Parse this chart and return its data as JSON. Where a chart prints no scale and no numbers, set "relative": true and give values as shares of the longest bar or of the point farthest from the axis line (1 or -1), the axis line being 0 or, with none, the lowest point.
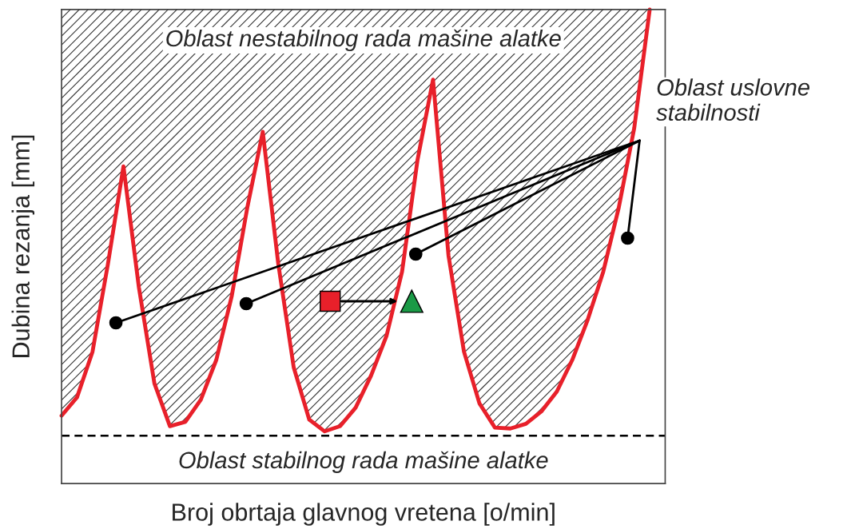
{
  "chart_data": {
    "type": "line",
    "relative": true,
    "xlabel": "Broj obrtaja glavnog vretena [o/min]",
    "ylabel": "Dubina rezanja [mm]",
    "categories": [
      null,
      null,
      null,
      null,
      null,
      null,
      null,
      null,
      null,
      null,
      null,
      null,
      null,
      null,
      null,
      null,
      null,
      null,
      null,
      null,
      null,
      null,
      null,
      null,
      null,
      null,
      null,
      null,
      null,
      null,
      null,
      null,
      null,
      null,
      null,
      null,
      null,
      null,
      null,
      null
    ],
    "series": [
      {
        "color": "#e8202a",
        "values": [
          0.143,
          0.182,
          0.278,
          0.464,
          0.669,
          0.413,
          0.211,
          0.121,
          0.13,
          0.177,
          0.261,
          0.396,
          0.582,
          0.742,
          0.464,
          0.245,
          0.135,
          0.11,
          0.121,
          0.16,
          0.228,
          0.312,
          0.447,
          0.683,
          0.852,
          0.481,
          0.278,
          0.169,
          0.118,
          0.116,
          0.126,
          0.152,
          0.194,
          0.261,
          0.346,
          0.447,
          0.582,
          0.75,
          1.0,
          null
        ],
        "lower": [
          0.143,
          0.182,
          0.278,
          0.464,
          0.669,
          0.413,
          0.211,
          0.121,
          0.13,
          0.177,
          0.261,
          0.396,
          0.582,
          0.742,
          0.464,
          0.245,
          0.135,
          0.11,
          0.121,
          0.16,
          0.228,
          0.312,
          0.447,
          0.683,
          0.852,
          0.481,
          0.278,
          0.169,
          0.118,
          0.116,
          0.126,
          0.152,
          0.194,
          0.261,
          0.346,
          0.447,
          0.582,
          0.75,
          1.0,
          null
        ],
        "upper": [
          1,
          1,
          1,
          1,
          1,
          1,
          1,
          1,
          1,
          1,
          1,
          1,
          1,
          1,
          1,
          1,
          1,
          1,
          1,
          1,
          1,
          1,
          1,
          1,
          1,
          1,
          1,
          1,
          1,
          1,
          1,
          1,
          1,
          1,
          1,
          1,
          1,
          1,
          1,
          null
        ]
      }
    ],
    "ref_lines": [
      {
        "axis": "y",
        "value": 0.101,
        "color": "#000000",
        "line_style": "dashed"
      }
    ],
    "annotations": [
      "Oblast nestabilnog rada mašine alatke",
      "Oblast stabilnog rada mašine alatke",
      "Oblast uslovne stabilnosti"
    ]
  }
}
